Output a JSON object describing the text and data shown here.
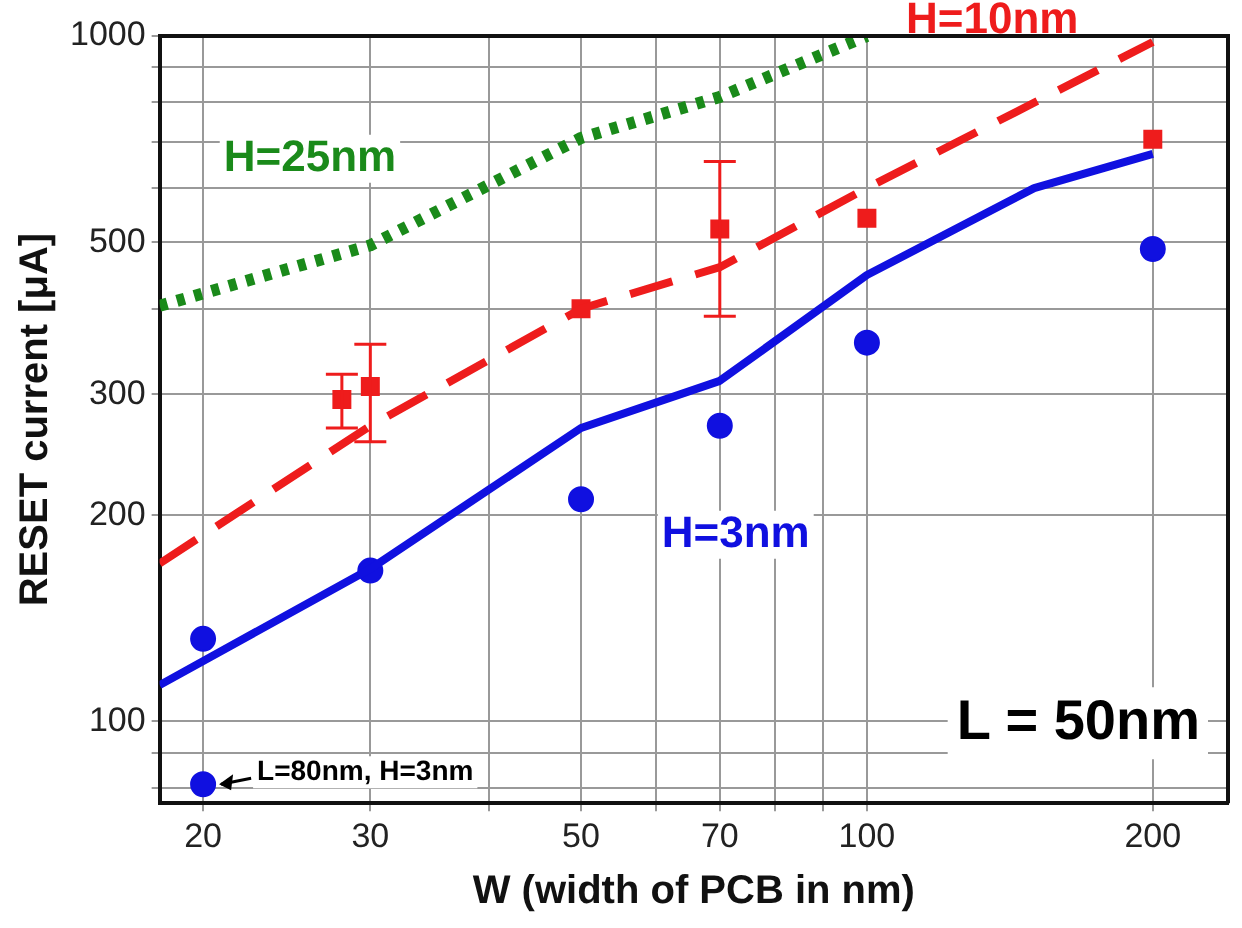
{
  "chart_data": {
    "type": "line",
    "xlabel": "W (width of PCB in nm)",
    "ylabel": "RESET current [μA]",
    "log": "xy",
    "grid": true,
    "legend": false,
    "xlim": [
      18,
      240
    ],
    "xticks": [
      20,
      30,
      {
        "value": 40,
        "label": null
      },
      50,
      {
        "value": 60,
        "label": null
      },
      70,
      {
        "value": 80,
        "label": null
      },
      {
        "value": 90,
        "label": null
      },
      100,
      200
    ],
    "ylim": [
      76,
      1000
    ],
    "yticks": [
      {
        "value": 80,
        "label": null
      },
      {
        "value": 90,
        "label": null
      },
      100,
      200,
      300,
      {
        "value": 400,
        "label": null
      },
      500,
      {
        "value": 600,
        "label": null
      },
      {
        "value": 700,
        "label": null
      },
      {
        "value": 800,
        "label": null
      },
      {
        "value": 900,
        "label": null
      },
      1000
    ],
    "series": [
      {
        "name": "H=25nm",
        "type": "line",
        "color": "#1a8a1a",
        "line_style": "dotted",
        "marker": "none",
        "x": [
          18,
          30,
          50,
          70,
          100
        ],
        "values": [
          404,
          495,
          710,
          815,
          1000
        ]
      },
      {
        "name": "H=10nm",
        "type": "line",
        "color": "#ee1c1c",
        "line_style": "dashed",
        "marker": "none",
        "x": [
          18,
          30,
          50,
          70,
          100,
          200
        ],
        "values": [
          170,
          270,
          400,
          460,
          600,
          980
        ]
      },
      {
        "name": "H=3nm",
        "type": "line",
        "color": "#1010e0",
        "line_style": "solid",
        "marker": "none",
        "x": [
          18,
          30,
          50,
          70,
          100,
          150,
          200
        ],
        "values": [
          113,
          167,
          268,
          314,
          448,
          600,
          673
        ]
      },
      {
        "type": "scatter",
        "color": "#ee1c1c",
        "marker": "square",
        "x": [
          28,
          30,
          50,
          70,
          100,
          200
        ],
        "values": [
          295,
          308,
          400,
          523,
          542,
          707
        ],
        "errors": [
          [
            268,
            321
          ],
          [
            256,
            355
          ],
          null,
          [
            390,
            656
          ],
          null,
          null
        ]
      },
      {
        "type": "scatter",
        "color": "#1010e0",
        "marker": "circle",
        "x": [
          20,
          30,
          50,
          70,
          100,
          200
        ],
        "values": [
          132,
          166,
          211,
          270,
          357,
          489
        ]
      },
      {
        "type": "scatter",
        "color": "#1010e0",
        "marker": "circle",
        "x": [
          20
        ],
        "values": [
          81
        ]
      }
    ],
    "annotations": [
      {
        "text": "L=80nm, H=3nm",
        "x": 20,
        "y": 81
      },
      "L = 50nm"
    ]
  }
}
